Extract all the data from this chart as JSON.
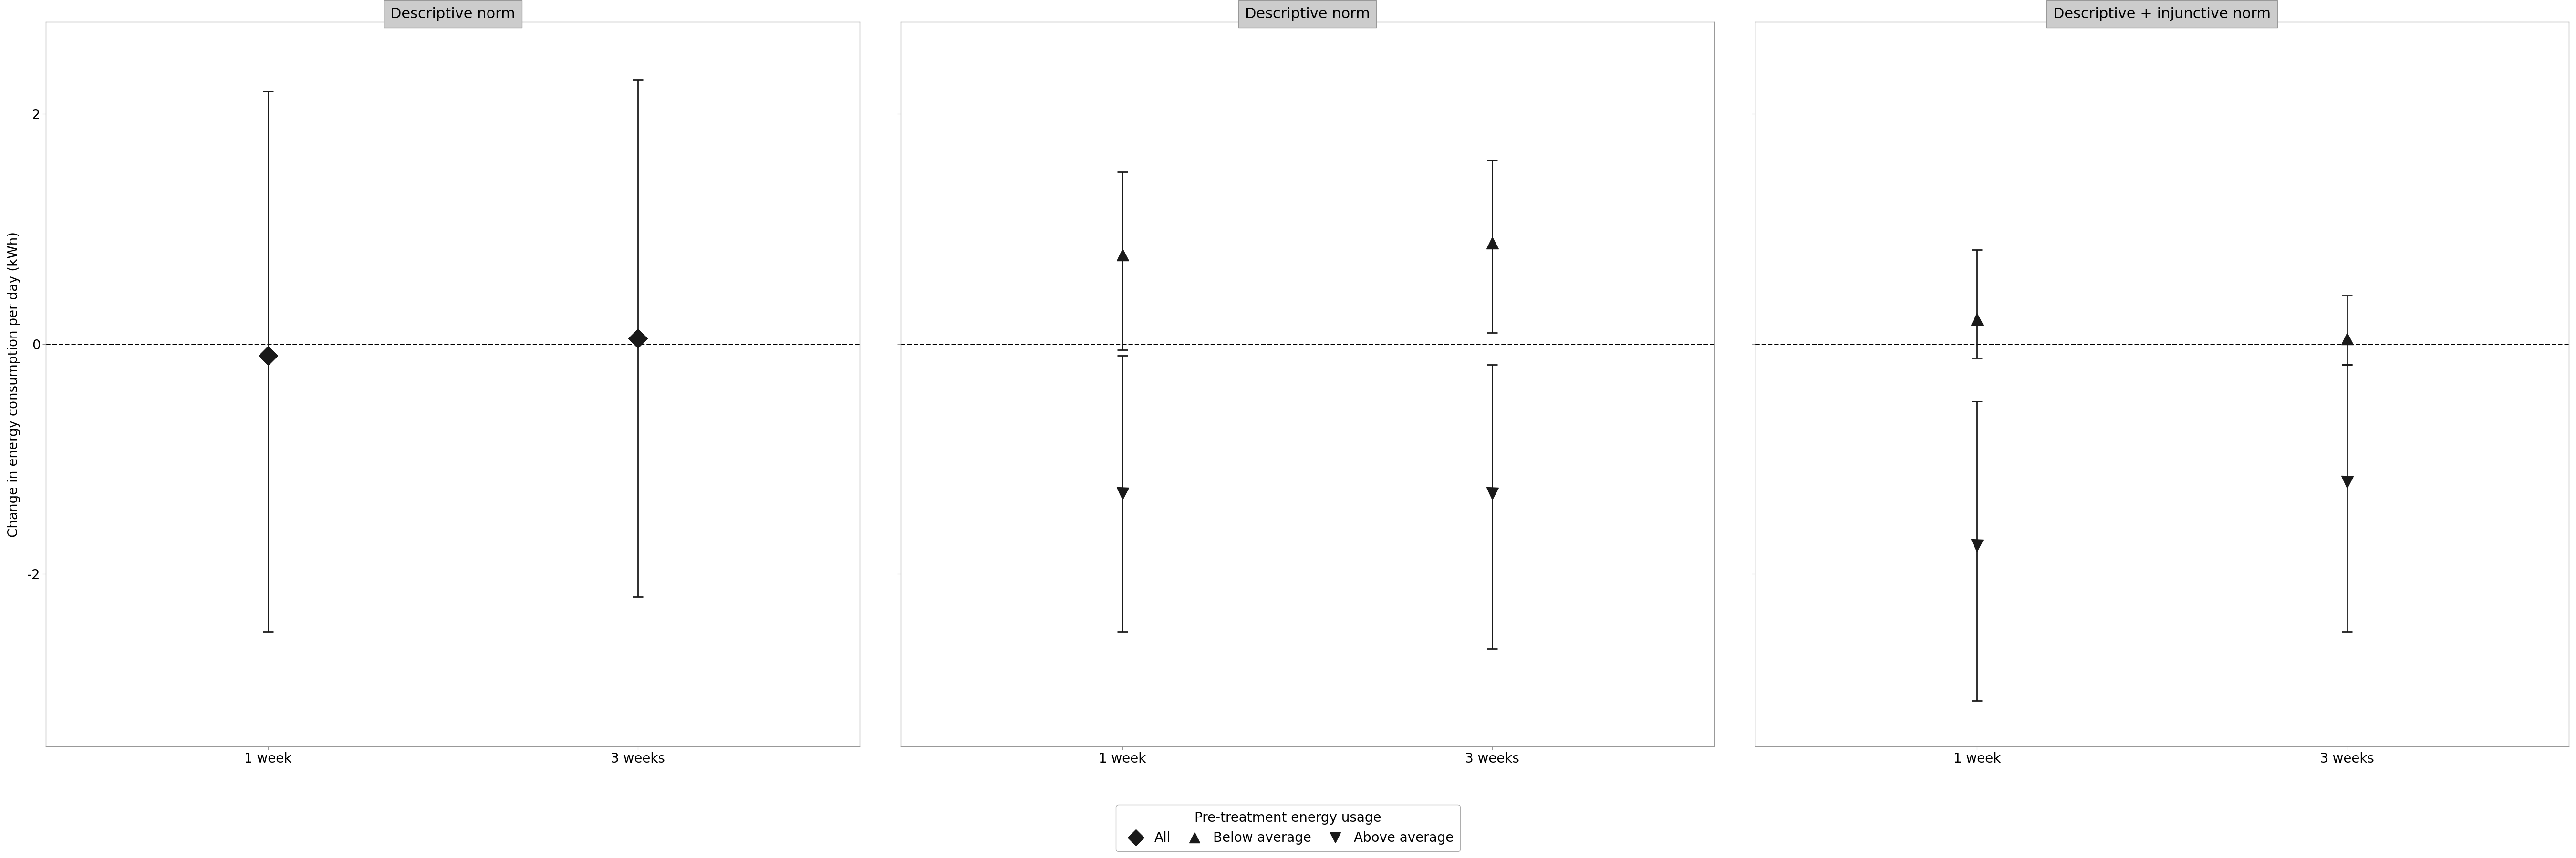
{
  "panels": [
    {
      "title": "Descriptive norm",
      "xtick_positions": [
        1,
        2
      ],
      "xtick_labels": [
        "1 week",
        "3 weeks"
      ],
      "series": [
        {
          "label": "All",
          "marker": "diamond",
          "x_positions": [
            1,
            2
          ],
          "y": [
            -0.1,
            0.05
          ],
          "ci_low": [
            -2.5,
            -2.2
          ],
          "ci_high": [
            2.2,
            2.3
          ]
        }
      ]
    },
    {
      "title": "Descriptive norm",
      "xtick_positions": [
        1,
        2
      ],
      "xtick_labels": [
        "1 week",
        "3 weeks"
      ],
      "series": [
        {
          "label": "Below average",
          "marker": "triangle_up",
          "x_positions": [
            1,
            2
          ],
          "y": [
            0.78,
            0.88
          ],
          "ci_low": [
            -0.05,
            0.1
          ],
          "ci_high": [
            1.5,
            1.6
          ]
        },
        {
          "label": "Above average",
          "marker": "triangle_down",
          "x_positions": [
            1,
            2
          ],
          "y": [
            -1.3,
            -1.3
          ],
          "ci_low": [
            -2.5,
            -2.65
          ],
          "ci_high": [
            -0.1,
            -0.18
          ]
        }
      ]
    },
    {
      "title": "Descriptive + injunctive norm",
      "xtick_positions": [
        1,
        2
      ],
      "xtick_labels": [
        "1 week",
        "3 weeks"
      ],
      "series": [
        {
          "label": "Below average",
          "marker": "triangle_up",
          "x_positions": [
            1,
            2
          ],
          "y": [
            0.22,
            0.05
          ],
          "ci_low": [
            -0.12,
            -0.18
          ],
          "ci_high": [
            0.82,
            0.42
          ]
        },
        {
          "label": "Above average",
          "marker": "triangle_down",
          "x_positions": [
            1,
            2
          ],
          "y": [
            -1.75,
            -1.2
          ],
          "ci_low": [
            -3.1,
            -2.5
          ],
          "ci_high": [
            -0.5,
            -0.18
          ]
        }
      ]
    }
  ],
  "ylim": [
    -3.5,
    2.8
  ],
  "yticks": [
    -2,
    0,
    2
  ],
  "ylabel": "Change in energy consumption per day (kWh)",
  "legend_label": "Pre-treatment energy usage",
  "marker_color": "#1a1a1a",
  "background_color": "#ffffff",
  "panel_title_bg": "#cccccc",
  "panel_title_edge": "#999999",
  "spine_color": "#999999",
  "capsize": 8,
  "linewidth": 2.0,
  "markersize_diamond": 20,
  "markersize_triangle": 18,
  "title_fontsize": 22,
  "tick_fontsize": 20,
  "ylabel_fontsize": 20,
  "legend_fontsize": 20
}
